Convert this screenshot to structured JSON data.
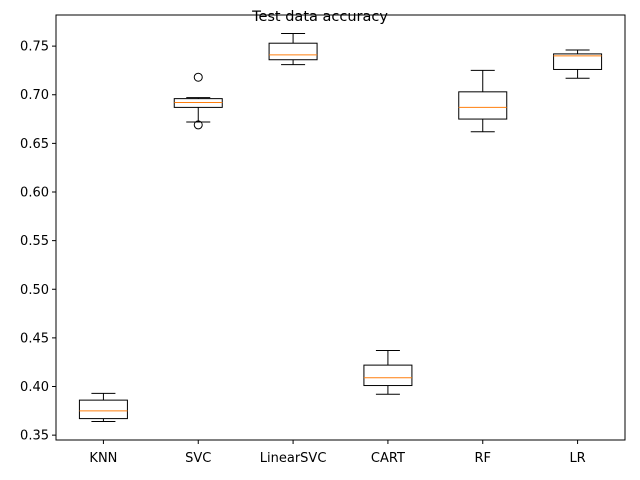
{
  "chart_data": {
    "type": "box",
    "title": "Test data accuracy",
    "xlabel": "",
    "ylabel": "",
    "categories": [
      "KNN",
      "SVC",
      "LinearSVC",
      "CART",
      "RF",
      "LR"
    ],
    "ylim": [
      0.345,
      0.782
    ],
    "yticks": [
      0.35,
      0.4,
      0.45,
      0.5,
      0.55,
      0.6,
      0.65,
      0.7,
      0.75
    ],
    "ytick_labels": [
      "0.35",
      "0.40",
      "0.45",
      "0.50",
      "0.55",
      "0.60",
      "0.65",
      "0.70",
      "0.75"
    ],
    "grid": false,
    "boxes": [
      {
        "category": "KNN",
        "whisker_low": 0.364,
        "q1": 0.367,
        "median": 0.375,
        "q3": 0.386,
        "whisker_high": 0.393,
        "outliers": []
      },
      {
        "category": "SVC",
        "whisker_low": 0.672,
        "q1": 0.687,
        "median": 0.692,
        "q3": 0.696,
        "whisker_high": 0.697,
        "outliers": [
          0.718,
          0.669
        ]
      },
      {
        "category": "LinearSVC",
        "whisker_low": 0.731,
        "q1": 0.736,
        "median": 0.741,
        "q3": 0.753,
        "whisker_high": 0.763,
        "outliers": []
      },
      {
        "category": "CART",
        "whisker_low": 0.392,
        "q1": 0.401,
        "median": 0.409,
        "q3": 0.422,
        "whisker_high": 0.437,
        "outliers": []
      },
      {
        "category": "RF",
        "whisker_low": 0.662,
        "q1": 0.675,
        "median": 0.687,
        "q3": 0.703,
        "whisker_high": 0.725,
        "outliers": []
      },
      {
        "category": "LR",
        "whisker_low": 0.717,
        "q1": 0.726,
        "median": 0.74,
        "q3": 0.742,
        "whisker_high": 0.746,
        "outliers": []
      }
    ],
    "colors": {
      "box": "#000000",
      "median": "#ff7f0e",
      "axes": "#000000",
      "background": "#ffffff"
    }
  }
}
